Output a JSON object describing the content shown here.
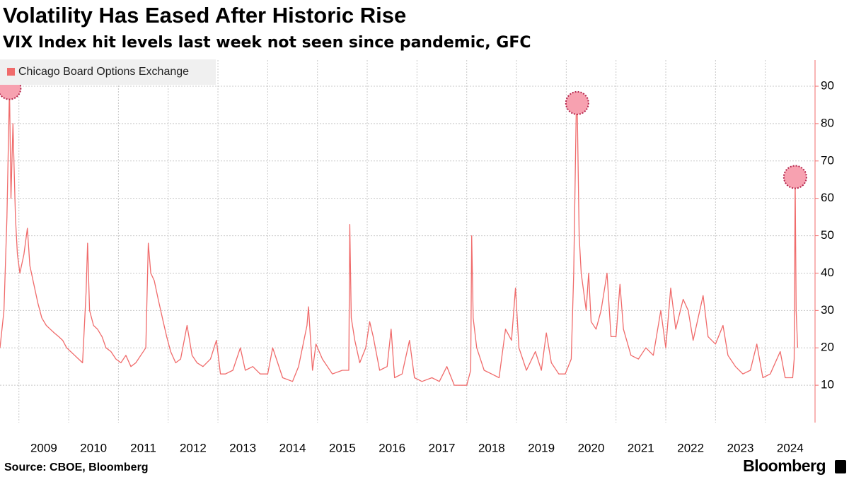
{
  "chart_data": {
    "type": "line",
    "title": "Volatility Has Eased After Historic Rise",
    "subtitle": "VIX Index hit levels last week not seen since pandemic, GFC",
    "source": "Source: CBOE, Bloomberg",
    "logo": "Bloomberg",
    "legend_position": "top-left",
    "grid": true,
    "xlim": [
      2008.62,
      2025.0
    ],
    "ylim": [
      0,
      97
    ],
    "yticks": [
      10,
      20,
      30,
      40,
      50,
      60,
      70,
      80,
      90
    ],
    "xticks": [
      {
        "value": 2009,
        "label": "2009"
      },
      {
        "value": 2010,
        "label": "2010"
      },
      {
        "value": 2011,
        "label": "2011"
      },
      {
        "value": 2012,
        "label": "2012"
      },
      {
        "value": 2013,
        "label": "2013"
      },
      {
        "value": 2014,
        "label": "2014"
      },
      {
        "value": 2015,
        "label": "2015"
      },
      {
        "value": 2016,
        "label": "2016"
      },
      {
        "value": 2017,
        "label": "2017"
      },
      {
        "value": 2018,
        "label": "2018"
      },
      {
        "value": 2019,
        "label": "2019"
      },
      {
        "value": 2020,
        "label": "2020"
      },
      {
        "value": 2021,
        "label": "2021"
      },
      {
        "value": 2022,
        "label": "2022"
      },
      {
        "value": 2023,
        "label": "2023"
      },
      {
        "value": 2024,
        "label": "2024"
      }
    ],
    "x": [
      2008.62,
      2008.7,
      2008.76,
      2008.81,
      2008.84,
      2008.88,
      2008.93,
      2008.97,
      2009.02,
      2009.1,
      2009.17,
      2009.22,
      2009.3,
      2009.38,
      2009.46,
      2009.55,
      2009.63,
      2009.71,
      2009.8,
      2009.88,
      2009.96,
      2010.04,
      2010.12,
      2010.2,
      2010.28,
      2010.35,
      2010.38,
      2010.42,
      2010.5,
      2010.58,
      2010.67,
      2010.75,
      2010.85,
      2010.95,
      2011.05,
      2011.15,
      2011.25,
      2011.35,
      2011.45,
      2011.55,
      2011.6,
      2011.65,
      2011.72,
      2011.8,
      2011.9,
      2011.97,
      2012.05,
      2012.15,
      2012.25,
      2012.38,
      2012.48,
      2012.58,
      2012.7,
      2012.85,
      2012.97,
      2013.05,
      2013.15,
      2013.3,
      2013.45,
      2013.55,
      2013.7,
      2013.85,
      2014.0,
      2014.1,
      2014.3,
      2014.5,
      2014.62,
      2014.79,
      2014.82,
      2014.9,
      2014.97,
      2015.1,
      2015.3,
      2015.5,
      2015.63,
      2015.65,
      2015.68,
      2015.75,
      2015.85,
      2015.97,
      2016.05,
      2016.12,
      2016.25,
      2016.4,
      2016.48,
      2016.55,
      2016.7,
      2016.85,
      2016.95,
      2017.1,
      2017.3,
      2017.45,
      2017.6,
      2017.75,
      2017.9,
      2018.0,
      2018.08,
      2018.1,
      2018.13,
      2018.2,
      2018.35,
      2018.5,
      2018.65,
      2018.78,
      2018.9,
      2018.98,
      2019.05,
      2019.2,
      2019.38,
      2019.5,
      2019.6,
      2019.7,
      2019.85,
      2019.98,
      2020.1,
      2020.15,
      2020.2,
      2020.22,
      2020.26,
      2020.3,
      2020.4,
      2020.45,
      2020.5,
      2020.6,
      2020.7,
      2020.82,
      2020.9,
      2021.0,
      2021.08,
      2021.15,
      2021.3,
      2021.45,
      2021.6,
      2021.75,
      2021.9,
      2022.0,
      2022.1,
      2022.2,
      2022.35,
      2022.45,
      2022.55,
      2022.75,
      2022.85,
      2023.0,
      2023.15,
      2023.25,
      2023.4,
      2023.55,
      2023.7,
      2023.83,
      2023.95,
      2024.1,
      2024.3,
      2024.4,
      2024.55,
      2024.58,
      2024.6,
      2024.62,
      2024.65
    ],
    "series": [
      {
        "name": "Chicago Board Options Exchange",
        "color": "#f06b6b",
        "values": [
          20,
          30,
          55,
          89.5,
          60,
          80,
          55,
          45,
          40,
          45,
          52,
          42,
          37,
          32,
          28,
          26,
          25,
          24,
          23,
          22,
          20,
          19,
          18,
          17,
          16,
          35,
          48,
          30,
          26,
          25,
          23,
          20,
          19,
          17,
          16,
          18,
          15,
          16,
          18,
          20,
          48,
          40,
          38,
          33,
          27,
          23,
          19,
          16,
          17,
          26,
          18,
          16,
          15,
          17,
          22,
          13,
          13,
          14,
          20,
          14,
          15,
          13,
          13,
          20,
          12,
          11,
          15,
          26,
          31,
          14,
          21,
          17,
          13,
          14,
          14,
          53,
          28,
          22,
          16,
          20,
          27,
          23,
          14,
          15,
          25,
          12,
          13,
          22,
          12,
          11,
          12,
          11,
          15,
          10,
          10,
          10,
          14,
          50,
          28,
          20,
          14,
          13,
          12,
          25,
          22,
          36,
          20,
          14,
          19,
          14,
          24,
          16,
          13,
          13,
          17,
          40,
          82.7,
          85.5,
          50,
          40,
          30,
          40,
          27,
          25,
          30,
          40,
          23,
          23,
          37,
          25,
          18,
          17,
          20,
          18,
          30,
          20,
          36,
          25,
          33,
          30,
          22,
          34,
          23,
          21,
          26,
          18,
          15,
          13,
          14,
          21,
          12,
          13,
          19,
          12,
          12,
          17,
          65.7,
          30,
          20
        ]
      }
    ]
  }
}
